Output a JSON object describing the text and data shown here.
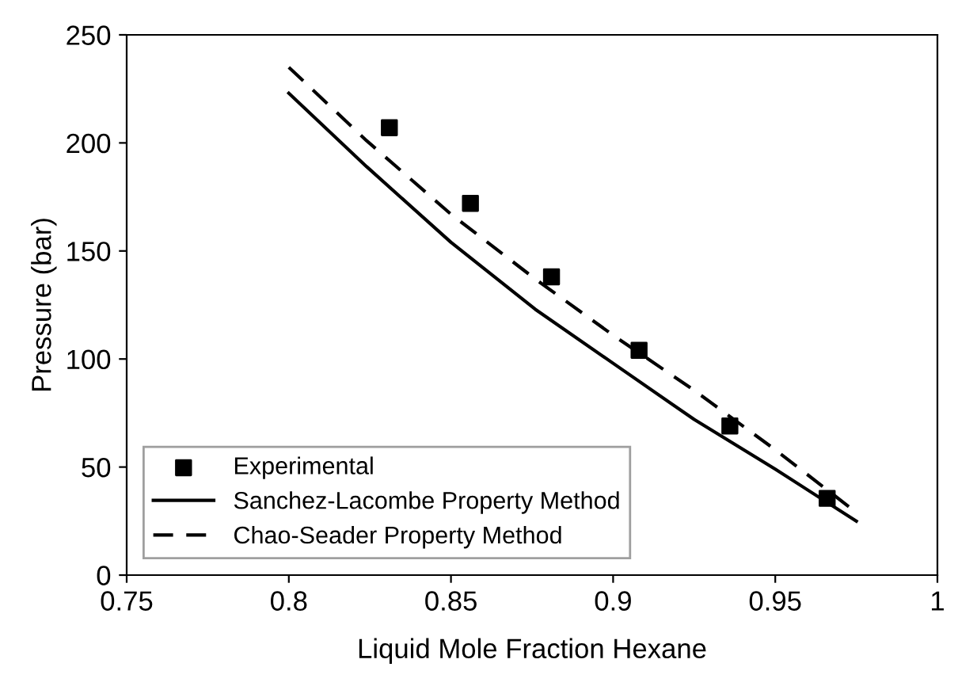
{
  "chart_data": {
    "type": "line",
    "xlabel": "Liquid Mole Fraction Hexane",
    "ylabel": "Pressure (bar)",
    "xlim": [
      0.75,
      1
    ],
    "xticks": [
      0.75,
      0.8,
      0.85,
      0.9,
      0.95,
      1
    ],
    "ylim": [
      0,
      250
    ],
    "yticks": [
      0,
      50,
      100,
      150,
      200,
      250
    ],
    "grid": false,
    "legend": "bottom left",
    "series": [
      {
        "name": "Experimental",
        "type": "scatter",
        "marker": "square",
        "color": "#000000",
        "x": [
          0.831,
          0.856,
          0.881,
          0.908,
          0.936,
          0.966
        ],
        "values": [
          207,
          172,
          138,
          104,
          69,
          35.5
        ]
      },
      {
        "name": "Sanchez-Lacombe Property Method",
        "line_style": "solid",
        "color": "#000000",
        "x": [
          0.8,
          0.824,
          0.85,
          0.876,
          0.9,
          0.925,
          0.95,
          0.975
        ],
        "values": [
          223,
          189,
          154,
          123,
          98,
          72,
          49,
          25
        ]
      },
      {
        "name": "Chao-Seader Property Method",
        "line_style": "dashed",
        "color": "#000000",
        "x": [
          0.8,
          0.824,
          0.85,
          0.876,
          0.9,
          0.925,
          0.95,
          0.975
        ],
        "values": [
          235,
          201,
          167,
          137,
          111,
          85.5,
          58,
          29
        ]
      }
    ]
  }
}
